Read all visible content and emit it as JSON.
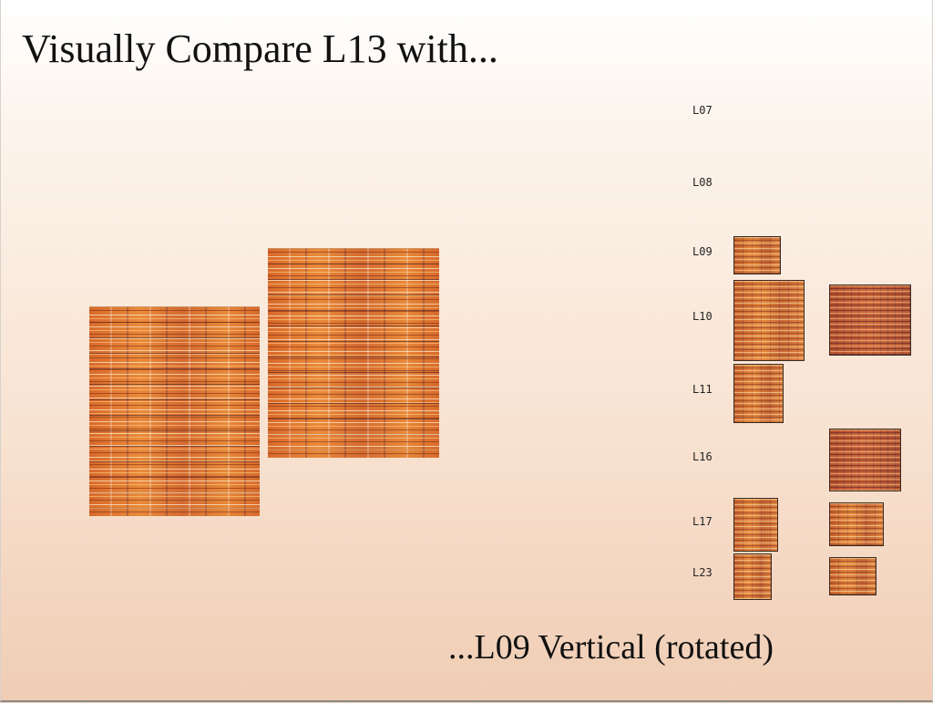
{
  "slide": {
    "title": "Visually Compare L13 with...",
    "subtitle": "...L09 Vertical (rotated)"
  },
  "rows": [
    {
      "label": "L07"
    },
    {
      "label": "L08"
    },
    {
      "label": "L09"
    },
    {
      "label": "L10"
    },
    {
      "label": "L11"
    },
    {
      "label": "L16"
    },
    {
      "label": "L17"
    },
    {
      "label": "L23"
    }
  ],
  "colors": {
    "texture_base": "#e07a28",
    "background_top": "#ffffff",
    "background_bottom": "#f0cdb4"
  }
}
